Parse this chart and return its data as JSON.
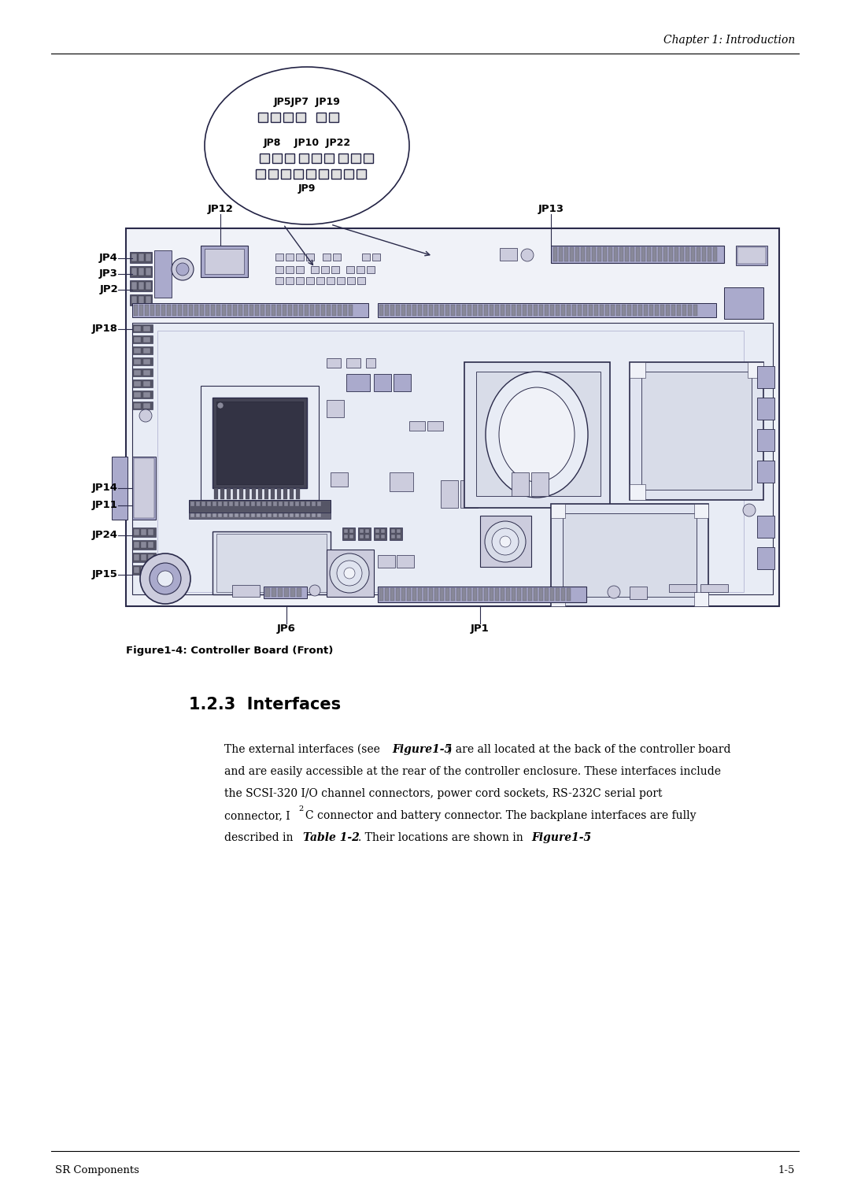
{
  "page_bg": "#ffffff",
  "header_text": "Chapter 1: Introduction",
  "footer_left": "SR Components",
  "footer_right": "1-5",
  "figure_caption": "Figure1-4: Controller Board (Front)",
  "section_title": "1.2.3  Interfaces",
  "body_line1": "The external interfaces (see ",
  "body_line1b": "Figure1-5",
  "body_line1c": ") are all located at the back of the controller board",
  "body_line2": "and are easily accessible at the rear of the controller enclosure. These interfaces include",
  "body_line3": "the SCSI-320 I/O channel connectors, power cord sockets, RS-232C serial port",
  "body_line4a": "connector, I",
  "body_line4b": "2",
  "body_line4c": "C connector and battery connector. The backplane interfaces are fully",
  "body_line5a": "described in ",
  "body_line5b": "Table 1-2",
  "body_line5c": ". Their locations are shown in ",
  "body_line5d": "Figure1-5",
  "body_line5e": ".",
  "board_color": "#d8dce8",
  "board_edge": "#2a2a4a",
  "line_color": "#2a2a4a"
}
